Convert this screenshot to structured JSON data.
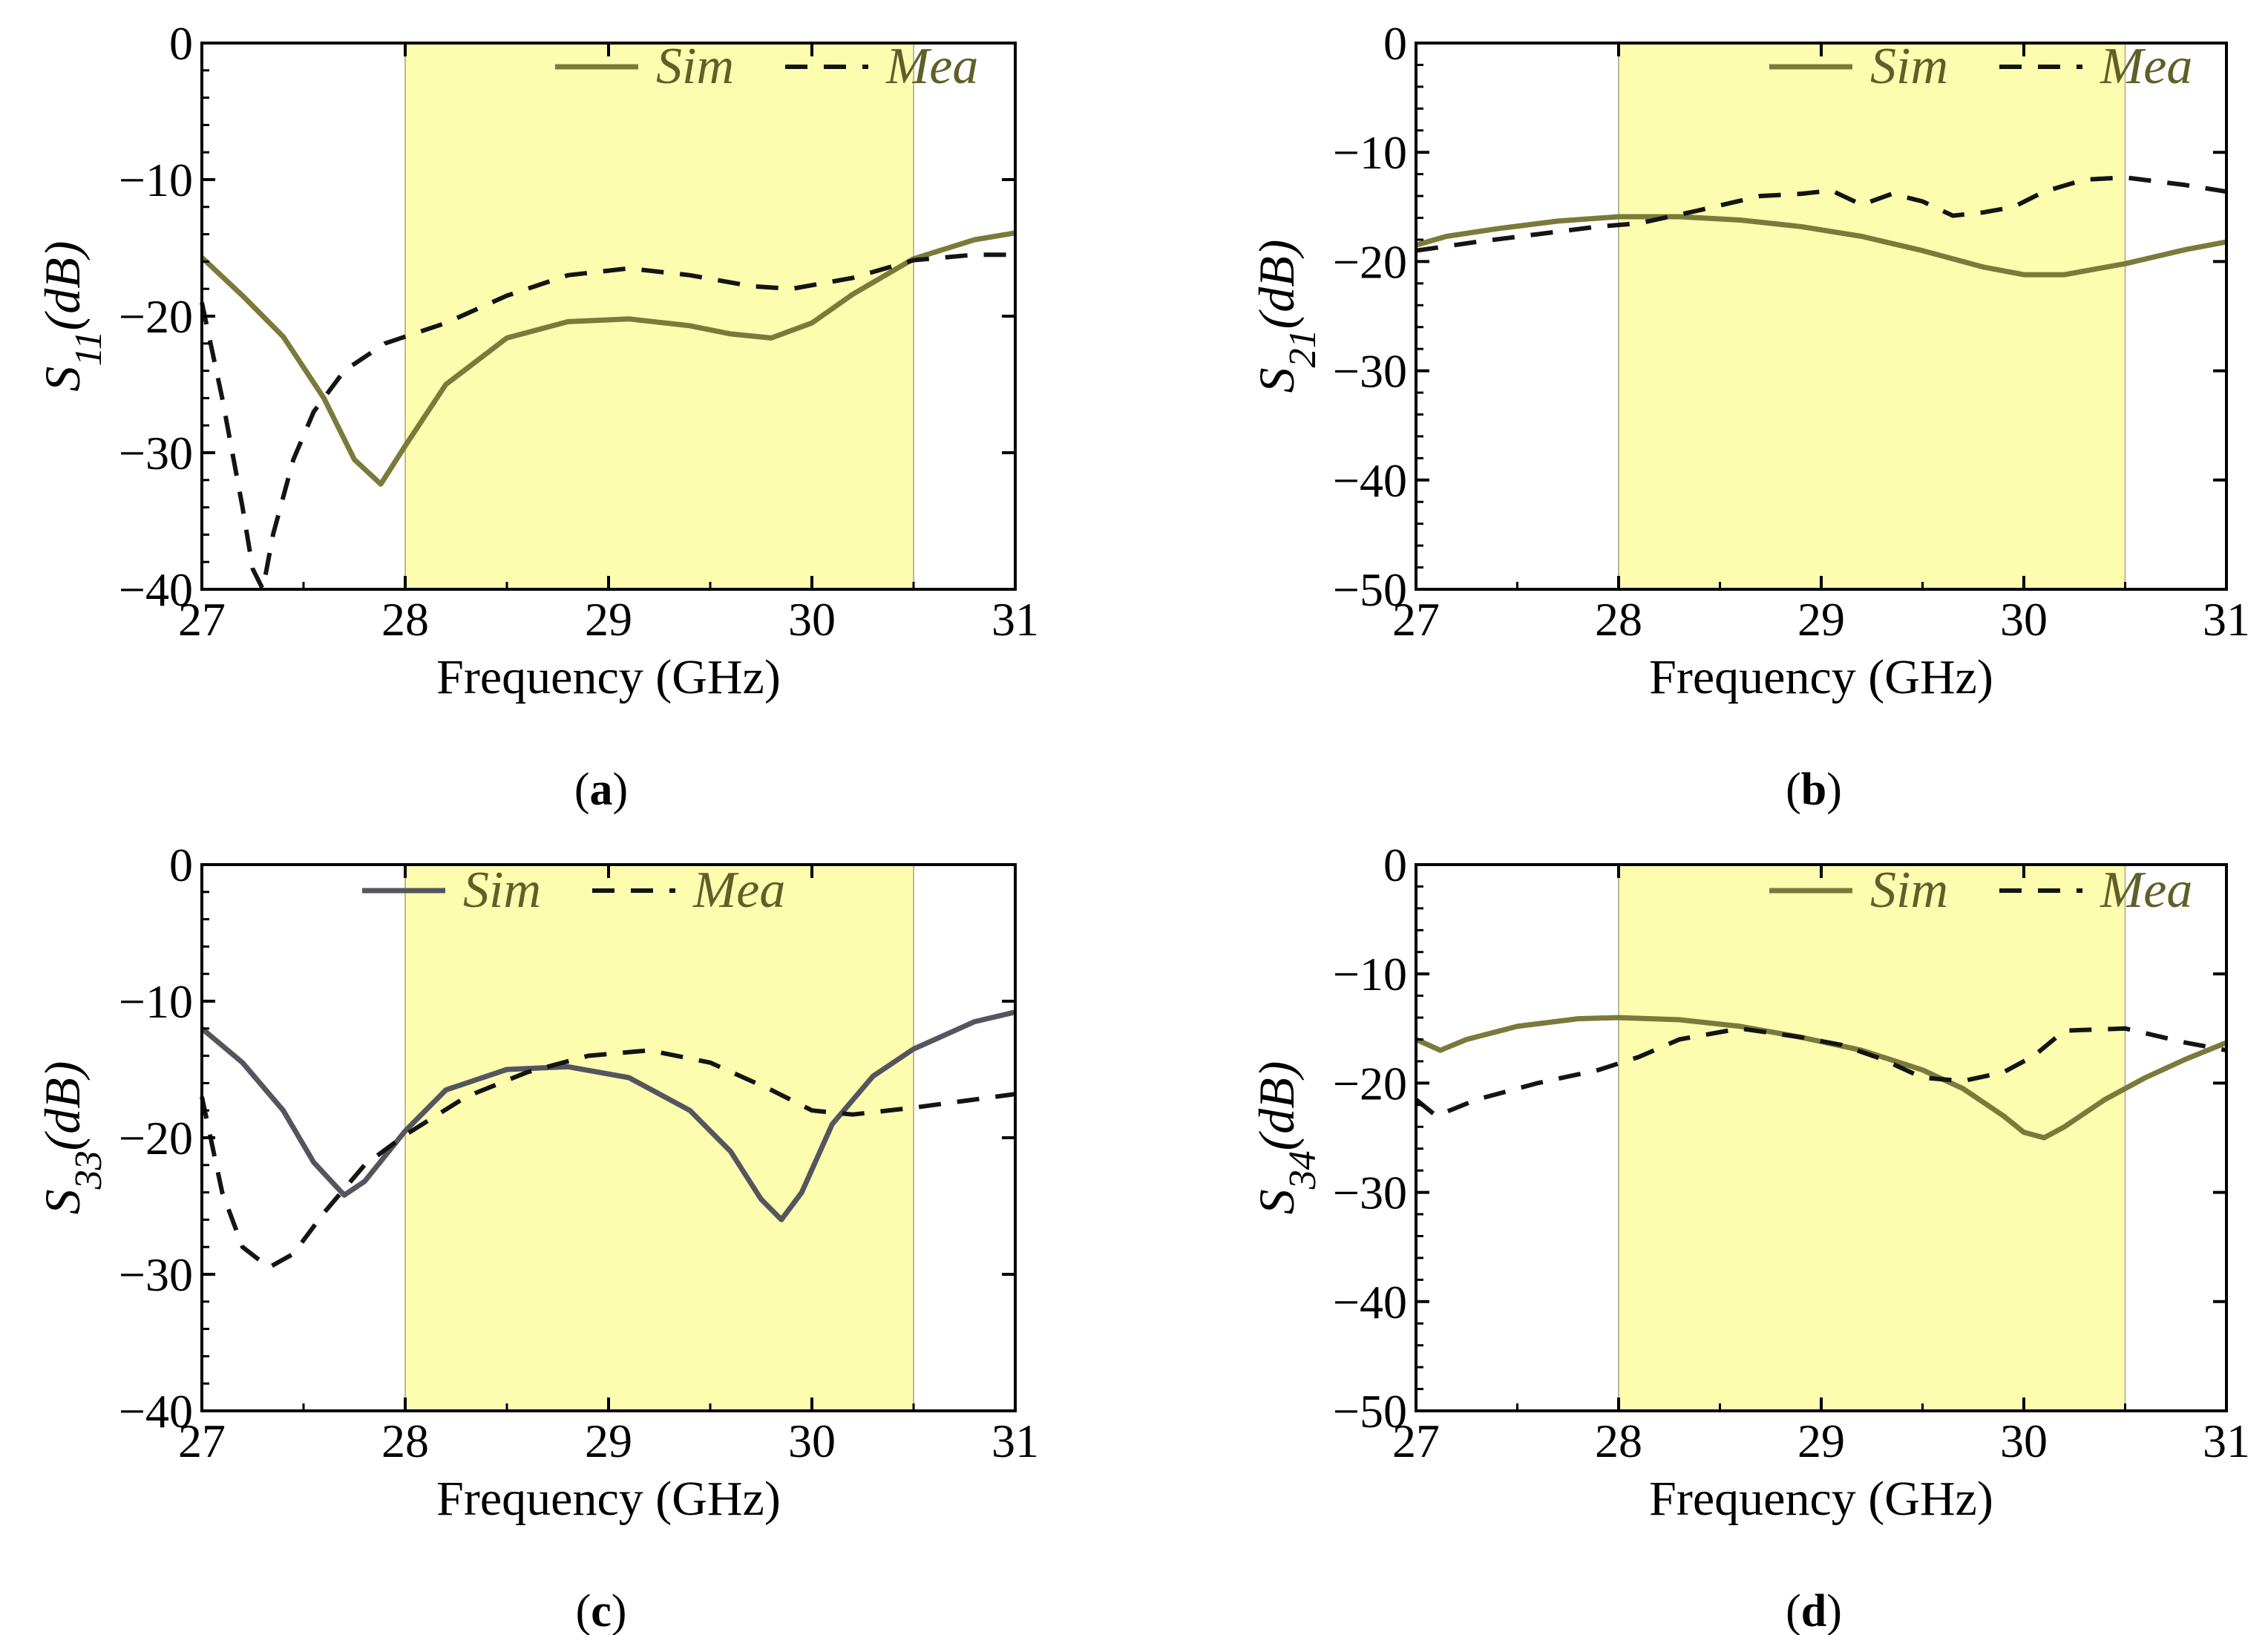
{
  "colors": {
    "shade": "#fdfdb0",
    "sim": "#7a7a3a",
    "sim_c": "#55555f",
    "mea": "#141414",
    "axis": "#000000",
    "legend_text": "#5f5f28"
  },
  "chart_data": [
    {
      "type": "line",
      "panel_label": "(a)",
      "panel_letter": "a",
      "xlabel": "Frequency (GHz)",
      "ylabel_base": "S",
      "ylabel_sub": "11",
      "ylabel_unit": "(dB)",
      "xlim": [
        27,
        31
      ],
      "ylim": [
        -40,
        0
      ],
      "xticks": [
        27,
        28,
        29,
        30,
        31
      ],
      "yticks": [
        0,
        -10,
        -20,
        -30,
        -40
      ],
      "ytick_labels": [
        "0",
        "−10",
        "−20",
        "−30",
        "−40"
      ],
      "xtick_labels": [
        "27",
        "28",
        "29",
        "30",
        "31"
      ],
      "shaded_band": [
        28,
        30.5
      ],
      "legend": [
        "Sim",
        "Mea"
      ],
      "legend_position": "top-right",
      "series": [
        {
          "name": "Sim",
          "style": "solid",
          "x": [
            27,
            27.2,
            27.4,
            27.6,
            27.75,
            27.88,
            28.0,
            28.2,
            28.5,
            28.8,
            29.1,
            29.4,
            29.6,
            29.8,
            30.0,
            30.2,
            30.5,
            30.8,
            31.0
          ],
          "y": [
            -15.7,
            -18.5,
            -21.5,
            -26.0,
            -30.5,
            -32.3,
            -29.5,
            -25.0,
            -21.6,
            -20.4,
            -20.2,
            -20.7,
            -21.3,
            -21.6,
            -20.5,
            -18.4,
            -15.8,
            -14.4,
            -13.9
          ]
        },
        {
          "name": "Mea",
          "style": "dashed",
          "x": [
            27,
            27.1,
            27.2,
            27.25,
            27.3,
            27.35,
            27.45,
            27.55,
            27.7,
            27.9,
            28.2,
            28.5,
            28.8,
            29.1,
            29.4,
            29.7,
            29.9,
            30.2,
            30.5,
            30.8,
            31.0
          ],
          "y": [
            -19.0,
            -26.0,
            -34.0,
            -38.5,
            -40.0,
            -36.0,
            -30.5,
            -27.0,
            -24.0,
            -22.0,
            -20.5,
            -18.5,
            -17.0,
            -16.5,
            -17.0,
            -17.8,
            -18.0,
            -17.2,
            -15.9,
            -15.5,
            -15.5
          ]
        }
      ]
    },
    {
      "type": "line",
      "panel_label": "(b)",
      "panel_letter": "b",
      "xlabel": "Frequency (GHz)",
      "ylabel_base": "S",
      "ylabel_sub": "21",
      "ylabel_unit": "(dB)",
      "xlim": [
        27,
        31
      ],
      "ylim": [
        -50,
        0
      ],
      "xticks": [
        27,
        28,
        29,
        30,
        31
      ],
      "yticks": [
        0,
        -10,
        -20,
        -30,
        -40,
        -50
      ],
      "ytick_labels": [
        "0",
        "−10",
        "−20",
        "−30",
        "−40",
        "−50"
      ],
      "xtick_labels": [
        "27",
        "28",
        "29",
        "30",
        "31"
      ],
      "shaded_band": [
        28,
        30.5
      ],
      "legend": [
        "Sim",
        "Mea"
      ],
      "legend_position": "top-right",
      "series": [
        {
          "name": "Sim",
          "style": "solid",
          "x": [
            27,
            27.15,
            27.4,
            27.7,
            28.0,
            28.3,
            28.6,
            28.9,
            29.2,
            29.5,
            29.8,
            30.0,
            30.2,
            30.5,
            30.8,
            31.0
          ],
          "y": [
            -18.5,
            -17.7,
            -17.0,
            -16.3,
            -15.9,
            -15.9,
            -16.2,
            -16.8,
            -17.7,
            -19.0,
            -20.5,
            -21.2,
            -21.2,
            -20.2,
            -18.9,
            -18.2
          ]
        },
        {
          "name": "Mea",
          "style": "dashed",
          "x": [
            27,
            27.3,
            27.6,
            27.9,
            28.1,
            28.4,
            28.7,
            28.9,
            29.05,
            29.2,
            29.35,
            29.5,
            29.65,
            29.8,
            29.95,
            30.1,
            30.3,
            30.5,
            30.8,
            31.0
          ],
          "y": [
            -19.0,
            -18.2,
            -17.5,
            -16.8,
            -16.5,
            -15.3,
            -14.0,
            -13.8,
            -13.5,
            -14.8,
            -13.8,
            -14.5,
            -15.8,
            -15.5,
            -15.0,
            -13.6,
            -12.5,
            -12.3,
            -13.0,
            -13.6
          ]
        }
      ]
    },
    {
      "type": "line",
      "panel_label": "(c)",
      "panel_letter": "c",
      "xlabel": "Frequency (GHz)",
      "ylabel_base": "S",
      "ylabel_sub": "33",
      "ylabel_unit": "(dB)",
      "xlim": [
        27,
        31
      ],
      "ylim": [
        -40,
        0
      ],
      "xticks": [
        27,
        28,
        29,
        30,
        31
      ],
      "yticks": [
        0,
        -10,
        -20,
        -30,
        -40
      ],
      "ytick_labels": [
        "0",
        "−10",
        "−20",
        "−30",
        "−40"
      ],
      "xtick_labels": [
        "27",
        "28",
        "29",
        "30",
        "31"
      ],
      "shaded_band": [
        28,
        30.5
      ],
      "legend": [
        "Sim",
        "Mea"
      ],
      "legend_position": "top-center",
      "series": [
        {
          "name": "Sim",
          "style": "solid",
          "x": [
            27,
            27.2,
            27.4,
            27.55,
            27.7,
            27.8,
            28.0,
            28.2,
            28.5,
            28.8,
            29.1,
            29.4,
            29.6,
            29.75,
            29.85,
            29.95,
            30.1,
            30.3,
            30.5,
            30.8,
            31.0
          ],
          "y": [
            -12.0,
            -14.5,
            -18.0,
            -21.8,
            -24.2,
            -23.2,
            -19.5,
            -16.5,
            -15.0,
            -14.8,
            -15.6,
            -18.0,
            -21.0,
            -24.5,
            -26.0,
            -24.0,
            -19.0,
            -15.5,
            -13.5,
            -11.5,
            -10.8
          ]
        },
        {
          "name": "Mea",
          "style": "dashed",
          "x": [
            27,
            27.1,
            27.2,
            27.33,
            27.45,
            27.6,
            27.8,
            28.0,
            28.3,
            28.6,
            28.9,
            29.2,
            29.5,
            29.8,
            30.0,
            30.2,
            30.5,
            30.8,
            31.0
          ],
          "y": [
            -17.0,
            -24.0,
            -28.0,
            -29.5,
            -28.5,
            -25.5,
            -22.0,
            -19.8,
            -17.0,
            -15.2,
            -14.0,
            -13.6,
            -14.5,
            -16.5,
            -18.0,
            -18.3,
            -17.8,
            -17.2,
            -16.8
          ]
        }
      ]
    },
    {
      "type": "line",
      "panel_label": "(d)",
      "panel_letter": "d",
      "xlabel": "Frequency (GHz)",
      "ylabel_base": "S",
      "ylabel_sub": "34",
      "ylabel_unit": "(dB)",
      "xlim": [
        27,
        31
      ],
      "ylim": [
        -50,
        0
      ],
      "xticks": [
        27,
        28,
        29,
        30,
        31
      ],
      "yticks": [
        0,
        -10,
        -20,
        -30,
        -40,
        -50
      ],
      "ytick_labels": [
        "0",
        "−10",
        "−20",
        "−30",
        "−40",
        "−50"
      ],
      "xtick_labels": [
        "27",
        "28",
        "29",
        "30",
        "31"
      ],
      "shaded_band": [
        28,
        30.5
      ],
      "legend": [
        "Sim",
        "Mea"
      ],
      "legend_position": "top-right",
      "series": [
        {
          "name": "Sim",
          "style": "solid",
          "x": [
            27,
            27.12,
            27.25,
            27.5,
            27.8,
            28.0,
            28.3,
            28.6,
            28.9,
            29.2,
            29.5,
            29.7,
            29.9,
            30.0,
            30.1,
            30.2,
            30.4,
            30.6,
            30.8,
            31.0
          ],
          "y": [
            -16.0,
            -17.0,
            -16.0,
            -14.8,
            -14.1,
            -14.0,
            -14.2,
            -14.8,
            -15.8,
            -17.0,
            -18.8,
            -20.5,
            -23.0,
            -24.5,
            -25.0,
            -24.0,
            -21.5,
            -19.5,
            -17.8,
            -16.3
          ]
        },
        {
          "name": "Mea",
          "style": "dashed",
          "x": [
            27,
            27.1,
            27.3,
            27.6,
            27.9,
            28.1,
            28.3,
            28.6,
            28.9,
            29.1,
            29.3,
            29.5,
            29.7,
            29.9,
            30.05,
            30.2,
            30.5,
            30.8,
            31.0
          ],
          "y": [
            -21.5,
            -23.0,
            -21.5,
            -20.0,
            -18.8,
            -17.6,
            -16.0,
            -15.0,
            -15.8,
            -16.5,
            -17.8,
            -19.5,
            -19.8,
            -19.0,
            -17.5,
            -15.2,
            -15.0,
            -16.3,
            -17.0
          ]
        }
      ]
    }
  ]
}
